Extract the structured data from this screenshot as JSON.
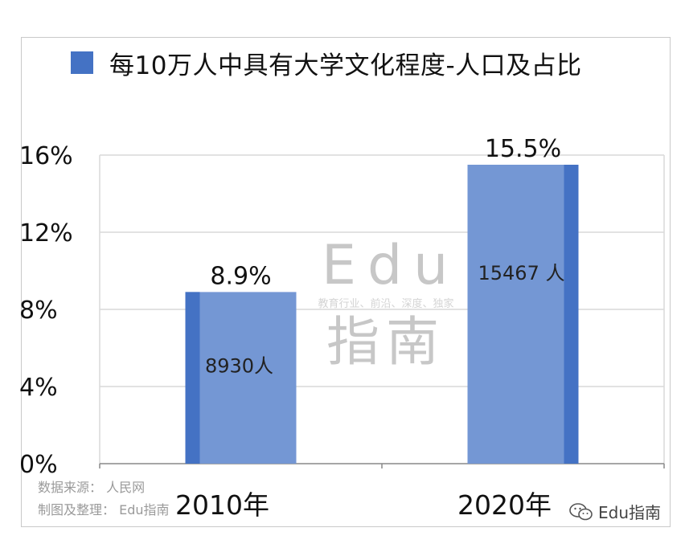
{
  "chart_data": {
    "type": "bar",
    "title": "每10万人中具有大学文化程度-人口及占比",
    "categories": [
      "2010年",
      "2020年"
    ],
    "series": [
      {
        "name": "每10万人中具有大学文化程度-人口及占比",
        "values": [
          8.9,
          15.5
        ]
      }
    ],
    "value_labels": [
      "8.9%",
      "15.5%"
    ],
    "inner_labels": [
      "8930人",
      "15467 人"
    ],
    "y_ticks": [
      "0%",
      "4%",
      "8%",
      "12%",
      "16%"
    ],
    "ylim": [
      0,
      16
    ],
    "grid": true,
    "legend_position": "top",
    "colors": {
      "bar": "#7497d4",
      "bar_edge": "#4472c4",
      "grid": "#d9d9d9"
    }
  },
  "source_lines": [
    "数据来源： 人民网",
    "制图及整理： Edu指南"
  ],
  "watermark": {
    "main": "Edu",
    "tagline": "教育行业、前沿、深度、独家",
    "cn": "指南"
  },
  "brand": {
    "label": "Edu指南",
    "icon": "wechat-icon"
  }
}
